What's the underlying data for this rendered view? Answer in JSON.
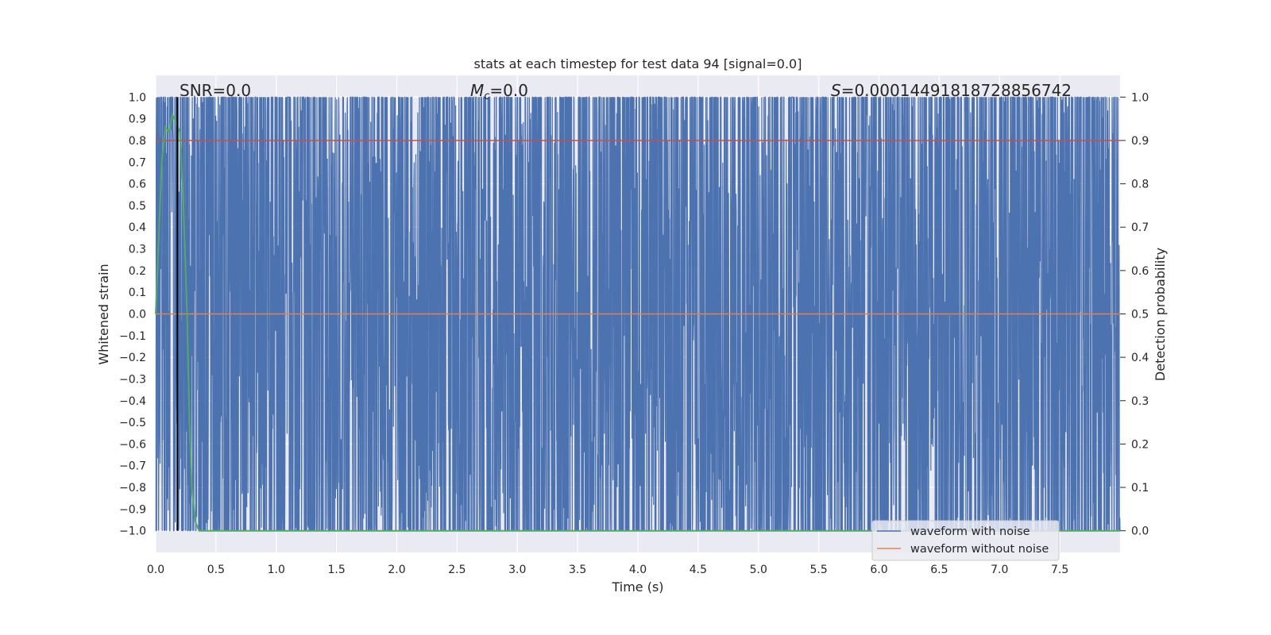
{
  "chart_data": {
    "type": "line",
    "title": "stats at each timestep for test data 94 [signal=0.0]",
    "xlabel": "Time (s)",
    "ylabel_left": "Whitened strain",
    "ylabel_right": "Detection probability",
    "xlim": [
      0.0,
      8.0
    ],
    "ylim_left": [
      -1.1,
      1.1
    ],
    "ylim_right": [
      -0.05,
      1.05
    ],
    "xticks": [
      "0.0",
      "0.5",
      "1.0",
      "1.5",
      "2.0",
      "2.5",
      "3.0",
      "3.5",
      "4.0",
      "4.5",
      "5.0",
      "5.5",
      "6.0",
      "6.5",
      "7.0",
      "7.5"
    ],
    "yticks_left": [
      "1.0",
      "0.9",
      "0.8",
      "0.7",
      "0.6",
      "0.5",
      "0.4",
      "0.3",
      "0.2",
      "0.1",
      "0.0",
      "−0.1",
      "−0.2",
      "−0.3",
      "−0.4",
      "−0.5",
      "−0.6",
      "−0.7",
      "−0.8",
      "−0.9",
      "−1.0"
    ],
    "yticks_right": [
      "1.0",
      "0.9",
      "0.8",
      "0.7",
      "0.6",
      "0.5",
      "0.4",
      "0.3",
      "0.2",
      "0.1",
      "0.0"
    ],
    "annotations": {
      "snr": "SNR=0.0",
      "mc_symbol": "M",
      "mc_sub": "c",
      "mc_value": "=0.0",
      "s_symbol": "S",
      "s_value": "=0.00014491818728856742"
    },
    "marker_time": 0.18,
    "threshold": 0.9,
    "series": [
      {
        "name": "waveform with noise",
        "color": "#4c72b0",
        "note": "dense whitened noise filling approx [-1, 1]",
        "seed": 94
      },
      {
        "name": "waveform without noise",
        "color": "#dd8452",
        "x": [
          0.0,
          8.0
        ],
        "y": [
          0.0,
          0.0
        ]
      },
      {
        "name": "detection probability",
        "color": "#55a868",
        "x": [
          0.0,
          0.05,
          0.08,
          0.11,
          0.14,
          0.17,
          0.2,
          0.23,
          0.26,
          0.28,
          0.3,
          0.33,
          0.36,
          0.4,
          8.0
        ],
        "y": [
          0.5,
          0.85,
          0.93,
          0.92,
          0.96,
          0.94,
          0.92,
          0.75,
          0.5,
          0.25,
          0.1,
          0.02,
          0.0,
          0.0,
          0.0
        ]
      }
    ],
    "legend": [
      {
        "label": "waveform with noise",
        "color": "#4c72b0"
      },
      {
        "label": "waveform without noise",
        "color": "#dd8452"
      }
    ],
    "legend_position": "lower-right",
    "colors": {
      "background": "#eaeaf2",
      "grid": "#ffffff",
      "threshold": "#c44e52",
      "marker": "#000000"
    }
  }
}
